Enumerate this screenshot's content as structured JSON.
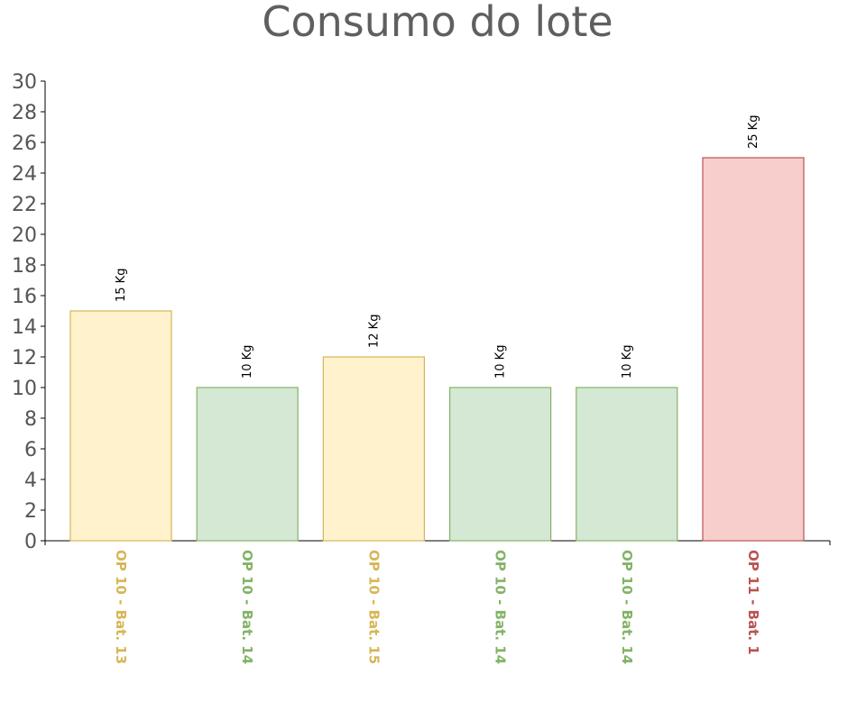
{
  "chart_data": {
    "type": "bar",
    "title": "Consumo do lote",
    "xlabel": "",
    "ylabel": "",
    "ylim": [
      0,
      30
    ],
    "yticks": [
      0,
      2,
      4,
      6,
      8,
      10,
      12,
      14,
      16,
      18,
      20,
      22,
      24,
      26,
      28,
      30
    ],
    "grid": false,
    "legend": "none",
    "categories": [
      "OP 10 - Bat. 13",
      "OP 10 - Bat. 14",
      "OP 10 - Bat. 15",
      "OP 10 - Bat. 14",
      "OP 10 - Bat. 14",
      "OP 11 - Bat. 1"
    ],
    "values": [
      15,
      10,
      12,
      10,
      10,
      25
    ],
    "data_labels": [
      "15 Kg",
      "10 Kg",
      "12 Kg",
      "10 Kg",
      "10 Kg",
      "25 Kg"
    ],
    "colors": {
      "fills": [
        "#fff2cc",
        "#d5e8d4",
        "#fff2cc",
        "#d5e8d4",
        "#d5e8d4",
        "#f8cecc"
      ],
      "strokes": [
        "#d6b656",
        "#82b366",
        "#d6b656",
        "#82b366",
        "#82b366",
        "#b85450"
      ],
      "label_colors": [
        "#d6b656",
        "#82b366",
        "#d6b656",
        "#82b366",
        "#82b366",
        "#b85450"
      ]
    }
  }
}
